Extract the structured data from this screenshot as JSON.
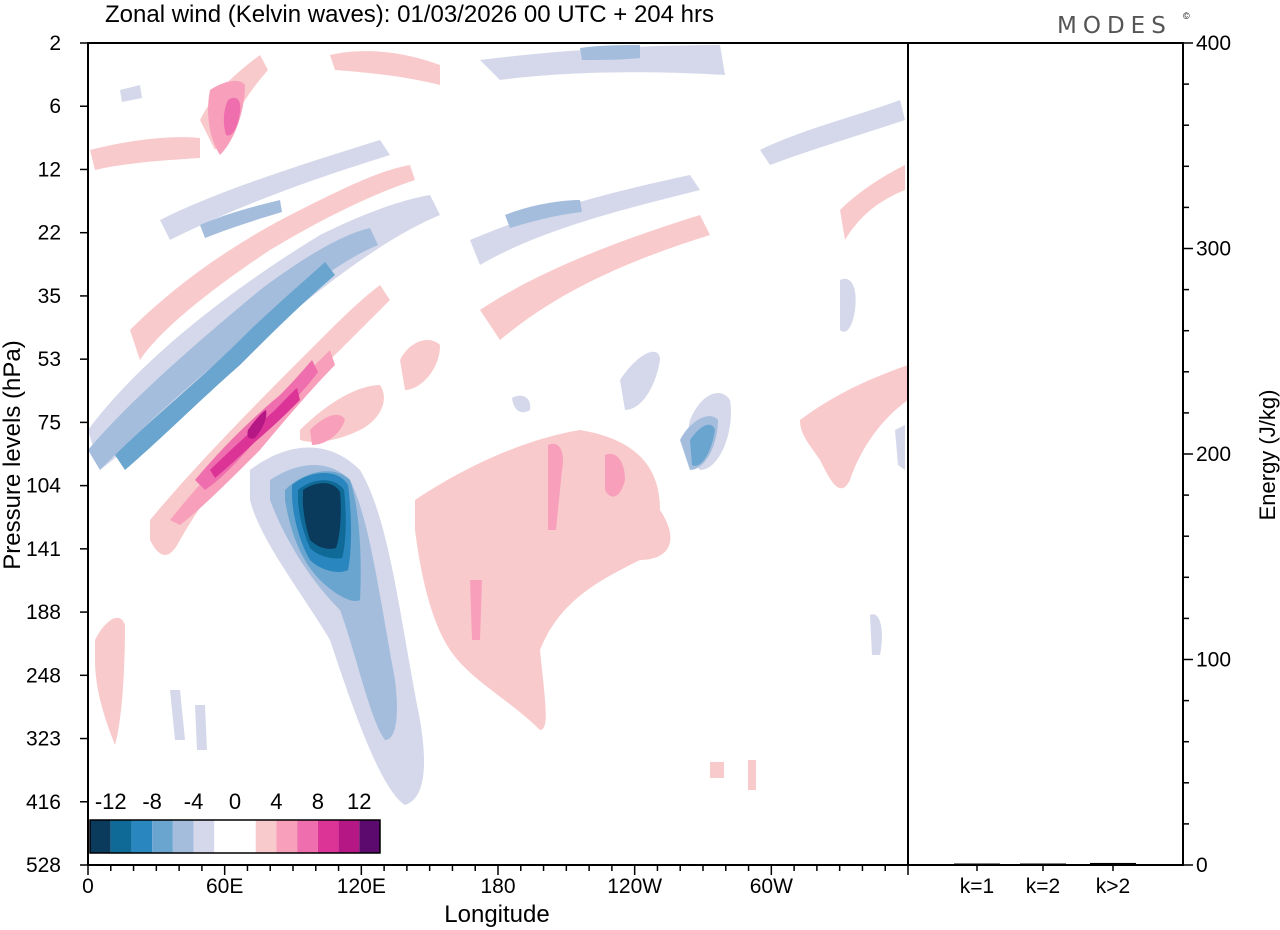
{
  "title": "Zonal wind (Kelvin waves):  01/03/2026  00 UTC  + 204 hrs",
  "brand": "MODES",
  "brand_mark": "©",
  "chart_data": [
    {
      "type": "heatmap",
      "title": "Zonal wind (Kelvin waves):  01/03/2026  00 UTC  + 204 hrs",
      "xlabel": "Longitude",
      "ylabel": "Pressure levels (hPa)",
      "x_ticks": [
        "0",
        "60E",
        "120E",
        "180",
        "120W",
        "60W"
      ],
      "x_tick_lon": [
        0,
        60,
        120,
        180,
        240,
        300
      ],
      "xlim": [
        0,
        360
      ],
      "y_ticks": [
        "2",
        "6",
        "12",
        "22",
        "35",
        "53",
        "75",
        "104",
        "141",
        "188",
        "248",
        "323",
        "416",
        "528"
      ],
      "colorbar": {
        "labels": [
          "-12",
          "-8",
          "-4",
          "0",
          "4",
          "8",
          "12"
        ],
        "levels": [
          -14,
          -12,
          -10,
          -8,
          -6,
          -4,
          -2,
          0,
          2,
          4,
          6,
          8,
          10,
          12,
          14
        ],
        "colors": [
          "#0a3a5c",
          "#0f6a98",
          "#2a86bf",
          "#6aa5cf",
          "#a4bddd",
          "#d4d8ea",
          "#ffffff",
          "#ffffff",
          "#f9cacb",
          "#f8a0bb",
          "#ef6fae",
          "#dc3397",
          "#b51884",
          "#5c0a6e"
        ]
      },
      "features": [
        {
          "name": "negative-anomaly-core",
          "lon_center": 105,
          "level_hPa": 120,
          "min_value": -12
        },
        {
          "name": "positive-tilted-band",
          "lon_center": 75,
          "level_hPa": 80,
          "max_value": 12
        },
        {
          "name": "negative-tilted-band",
          "lon_center": 60,
          "level_hPa": 45,
          "min_value": -8
        }
      ]
    },
    {
      "type": "bar",
      "ylabel": "Energy (J/kg)",
      "categories": [
        "k=1",
        "k=2",
        "k>2"
      ],
      "values": [
        0.4,
        0.4,
        1.0
      ],
      "ylim": [
        0,
        400
      ],
      "y_ticks": [
        "0",
        "100",
        "200",
        "300",
        "400"
      ],
      "y_tick_values": [
        0,
        100,
        200,
        300,
        400
      ]
    }
  ]
}
